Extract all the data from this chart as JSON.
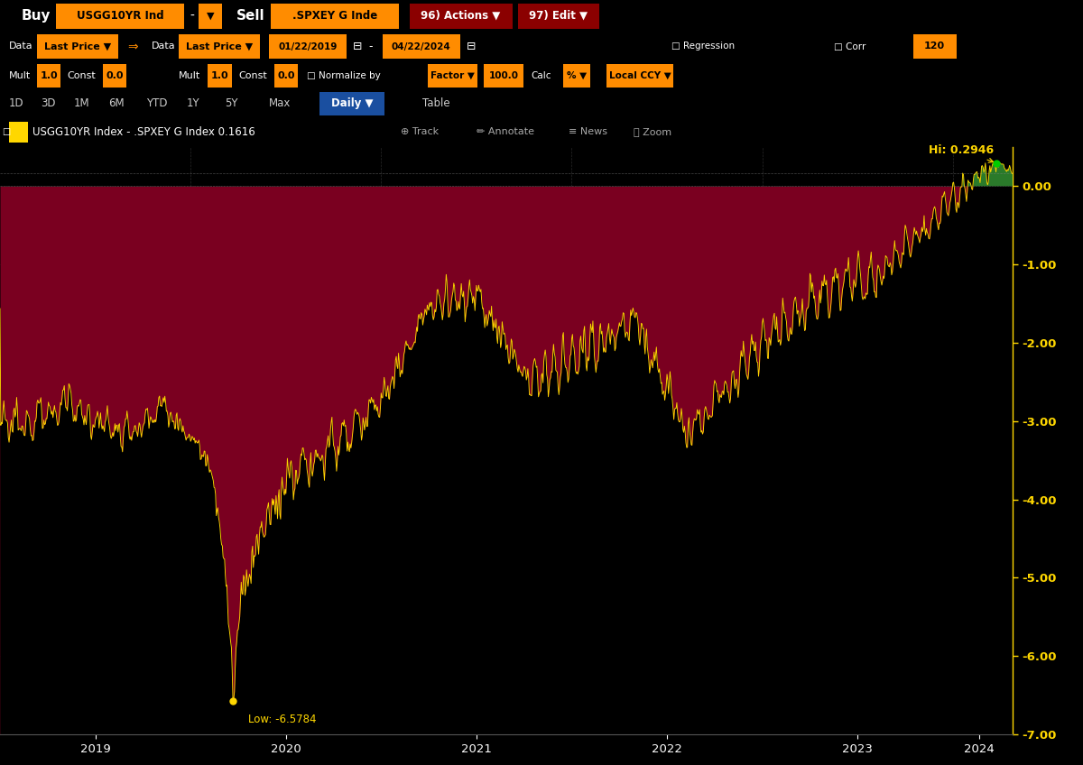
{
  "legend_text": "USGG10YR Index - .SPXEY G Index 0.1616",
  "hi_label": "Hi: 0.2946",
  "lo_label": "Low: -6.5784",
  "current_label": "0.1616",
  "y_min": -7.0,
  "y_max": 0.5,
  "y_ticks": [
    0.0,
    -1.0,
    -2.0,
    -3.0,
    -4.0,
    -5.0,
    -6.0,
    -7.0
  ],
  "bg_color": "#000000",
  "fill_color_neg": "#7a0020",
  "line_color": "#FFD700",
  "grid_color": "#2a2a2a",
  "x_labels": [
    "2019",
    "2020",
    "2021",
    "2022",
    "2023",
    "2024"
  ],
  "toolbar_bg": "#8B0000",
  "bar1_bg": "#000000",
  "bar2_bg": "#000000",
  "tab_bg": "#000000",
  "legend_bg": "#111111",
  "daily_btn_color": "#1a4fa0"
}
